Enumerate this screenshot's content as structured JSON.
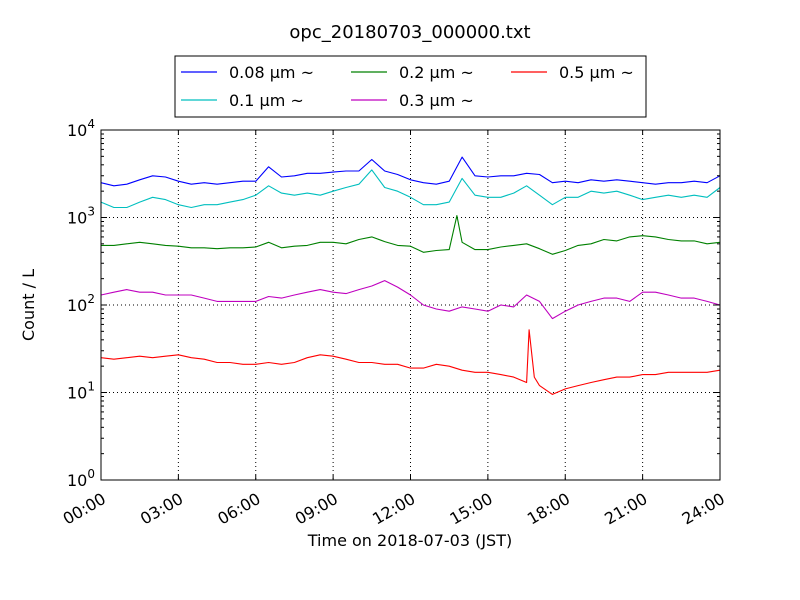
{
  "chart_data": {
    "type": "line",
    "title": "opc_20180703_000000.txt",
    "xlabel": "Time on 2018-07-03 (JST)",
    "ylabel": "Count / L",
    "xlim": [
      0,
      24
    ],
    "x_unit": "hours",
    "x_tick_labels": [
      "00:00",
      "03:00",
      "06:00",
      "09:00",
      "12:00",
      "15:00",
      "18:00",
      "21:00",
      "24:00"
    ],
    "y_scale": "log",
    "ylim": [
      1,
      10000
    ],
    "y_ticks": [
      {
        "value": 1,
        "base": "10",
        "exp": "0"
      },
      {
        "value": 10,
        "base": "10",
        "exp": "1"
      },
      {
        "value": 100,
        "base": "10",
        "exp": "2"
      },
      {
        "value": 1000,
        "base": "10",
        "exp": "3"
      },
      {
        "value": 10000,
        "base": "10",
        "exp": "4"
      }
    ],
    "grid": true,
    "legend_position": "above-plot",
    "series": [
      {
        "name": "0.08 μm ~",
        "color": "#0000ff",
        "x": [
          0,
          0.5,
          1,
          1.5,
          2,
          2.5,
          3,
          3.5,
          4,
          4.5,
          5,
          5.5,
          6,
          6.5,
          7,
          7.5,
          8,
          8.5,
          9,
          9.5,
          10,
          10.5,
          11,
          11.5,
          12,
          12.5,
          13,
          13.5,
          14,
          14.5,
          15,
          15.5,
          16,
          16.5,
          17,
          17.5,
          18,
          18.5,
          19,
          19.5,
          20,
          20.5,
          21,
          21.5,
          22,
          22.5,
          23,
          23.5,
          24
        ],
        "y": [
          2500,
          2300,
          2400,
          2700,
          3000,
          2900,
          2600,
          2400,
          2500,
          2400,
          2500,
          2600,
          2600,
          3800,
          2900,
          3000,
          3200,
          3200,
          3300,
          3400,
          3400,
          4600,
          3400,
          3100,
          2700,
          2500,
          2400,
          2600,
          4900,
          3000,
          2900,
          3000,
          3000,
          3200,
          3100,
          2500,
          2600,
          2500,
          2700,
          2600,
          2700,
          2600,
          2500,
          2400,
          2500,
          2500,
          2600,
          2500,
          3000
        ]
      },
      {
        "name": "0.1 μm ~",
        "color": "#00bfbf",
        "x": [
          0,
          0.5,
          1,
          1.5,
          2,
          2.5,
          3,
          3.5,
          4,
          4.5,
          5,
          5.5,
          6,
          6.5,
          7,
          7.5,
          8,
          8.5,
          9,
          9.5,
          10,
          10.5,
          11,
          11.5,
          12,
          12.5,
          13,
          13.5,
          14,
          14.5,
          15,
          15.5,
          16,
          16.5,
          17,
          17.5,
          18,
          18.5,
          19,
          19.5,
          20,
          20.5,
          21,
          21.5,
          22,
          22.5,
          23,
          23.5,
          24
        ],
        "y": [
          1500,
          1300,
          1300,
          1500,
          1700,
          1600,
          1400,
          1300,
          1400,
          1400,
          1500,
          1600,
          1800,
          2300,
          1900,
          1800,
          1900,
          1800,
          2000,
          2200,
          2400,
          3500,
          2200,
          2000,
          1700,
          1400,
          1400,
          1500,
          2800,
          1800,
          1700,
          1700,
          1900,
          2300,
          1800,
          1400,
          1700,
          1700,
          2000,
          1900,
          2000,
          1800,
          1600,
          1700,
          1800,
          1700,
          1800,
          1700,
          2200
        ]
      },
      {
        "name": "0.2 μm ~",
        "color": "#008000",
        "x": [
          0,
          0.5,
          1,
          1.5,
          2,
          2.5,
          3,
          3.5,
          4,
          4.5,
          5,
          5.5,
          6,
          6.5,
          7,
          7.5,
          8,
          8.5,
          9,
          9.5,
          10,
          10.5,
          11,
          11.5,
          12,
          12.5,
          13,
          13.5,
          13.8,
          14,
          14.5,
          15,
          15.5,
          16,
          16.5,
          17,
          17.5,
          18,
          18.5,
          19,
          19.5,
          20,
          20.5,
          21,
          21.5,
          22,
          22.5,
          23,
          23.5,
          24
        ],
        "y": [
          480,
          480,
          500,
          520,
          500,
          480,
          470,
          450,
          450,
          440,
          450,
          450,
          460,
          520,
          450,
          470,
          480,
          520,
          520,
          500,
          560,
          600,
          530,
          480,
          470,
          400,
          420,
          430,
          1050,
          520,
          430,
          430,
          460,
          480,
          500,
          440,
          380,
          420,
          480,
          500,
          560,
          540,
          600,
          620,
          600,
          560,
          540,
          540,
          500,
          520
        ]
      },
      {
        "name": "0.3 μm ~",
        "color": "#bf00bf",
        "x": [
          0,
          0.5,
          1,
          1.5,
          2,
          2.5,
          3,
          3.5,
          4,
          4.5,
          5,
          5.5,
          6,
          6.5,
          7,
          7.5,
          8,
          8.5,
          9,
          9.5,
          10,
          10.5,
          11,
          11.5,
          12,
          12.5,
          13,
          13.5,
          14,
          14.5,
          15,
          15.5,
          16,
          16.5,
          17,
          17.5,
          18,
          18.5,
          19,
          19.5,
          20,
          20.5,
          21,
          21.5,
          22,
          22.5,
          23,
          23.5,
          24
        ],
        "y": [
          130,
          140,
          150,
          140,
          140,
          130,
          130,
          130,
          120,
          110,
          110,
          110,
          110,
          125,
          120,
          130,
          140,
          150,
          140,
          135,
          150,
          165,
          190,
          160,
          130,
          100,
          90,
          85,
          95,
          90,
          85,
          100,
          95,
          130,
          110,
          70,
          85,
          100,
          110,
          120,
          120,
          110,
          140,
          140,
          130,
          120,
          120,
          110,
          100
        ]
      },
      {
        "name": "0.5 μm ~",
        "color": "#ff0000",
        "x": [
          0,
          0.5,
          1,
          1.5,
          2,
          2.5,
          3,
          3.5,
          4,
          4.5,
          5,
          5.5,
          6,
          6.5,
          7,
          7.5,
          8,
          8.5,
          9,
          9.5,
          10,
          10.5,
          11,
          11.5,
          12,
          12.5,
          13,
          13.5,
          14,
          14.5,
          15,
          15.5,
          16,
          16.5,
          16.6,
          16.8,
          17,
          17.5,
          18,
          18.5,
          19,
          19.5,
          20,
          20.5,
          21,
          21.5,
          22,
          22.5,
          23,
          23.5,
          24
        ],
        "y": [
          25,
          24,
          25,
          26,
          25,
          26,
          27,
          25,
          24,
          22,
          22,
          21,
          21,
          22,
          21,
          22,
          25,
          27,
          26,
          24,
          22,
          22,
          21,
          21,
          19,
          19,
          21,
          20,
          18,
          17,
          17,
          16,
          15,
          13,
          52,
          15,
          12,
          9.5,
          11,
          12,
          13,
          14,
          15,
          15,
          16,
          16,
          17,
          17,
          17,
          17,
          18
        ]
      }
    ]
  }
}
